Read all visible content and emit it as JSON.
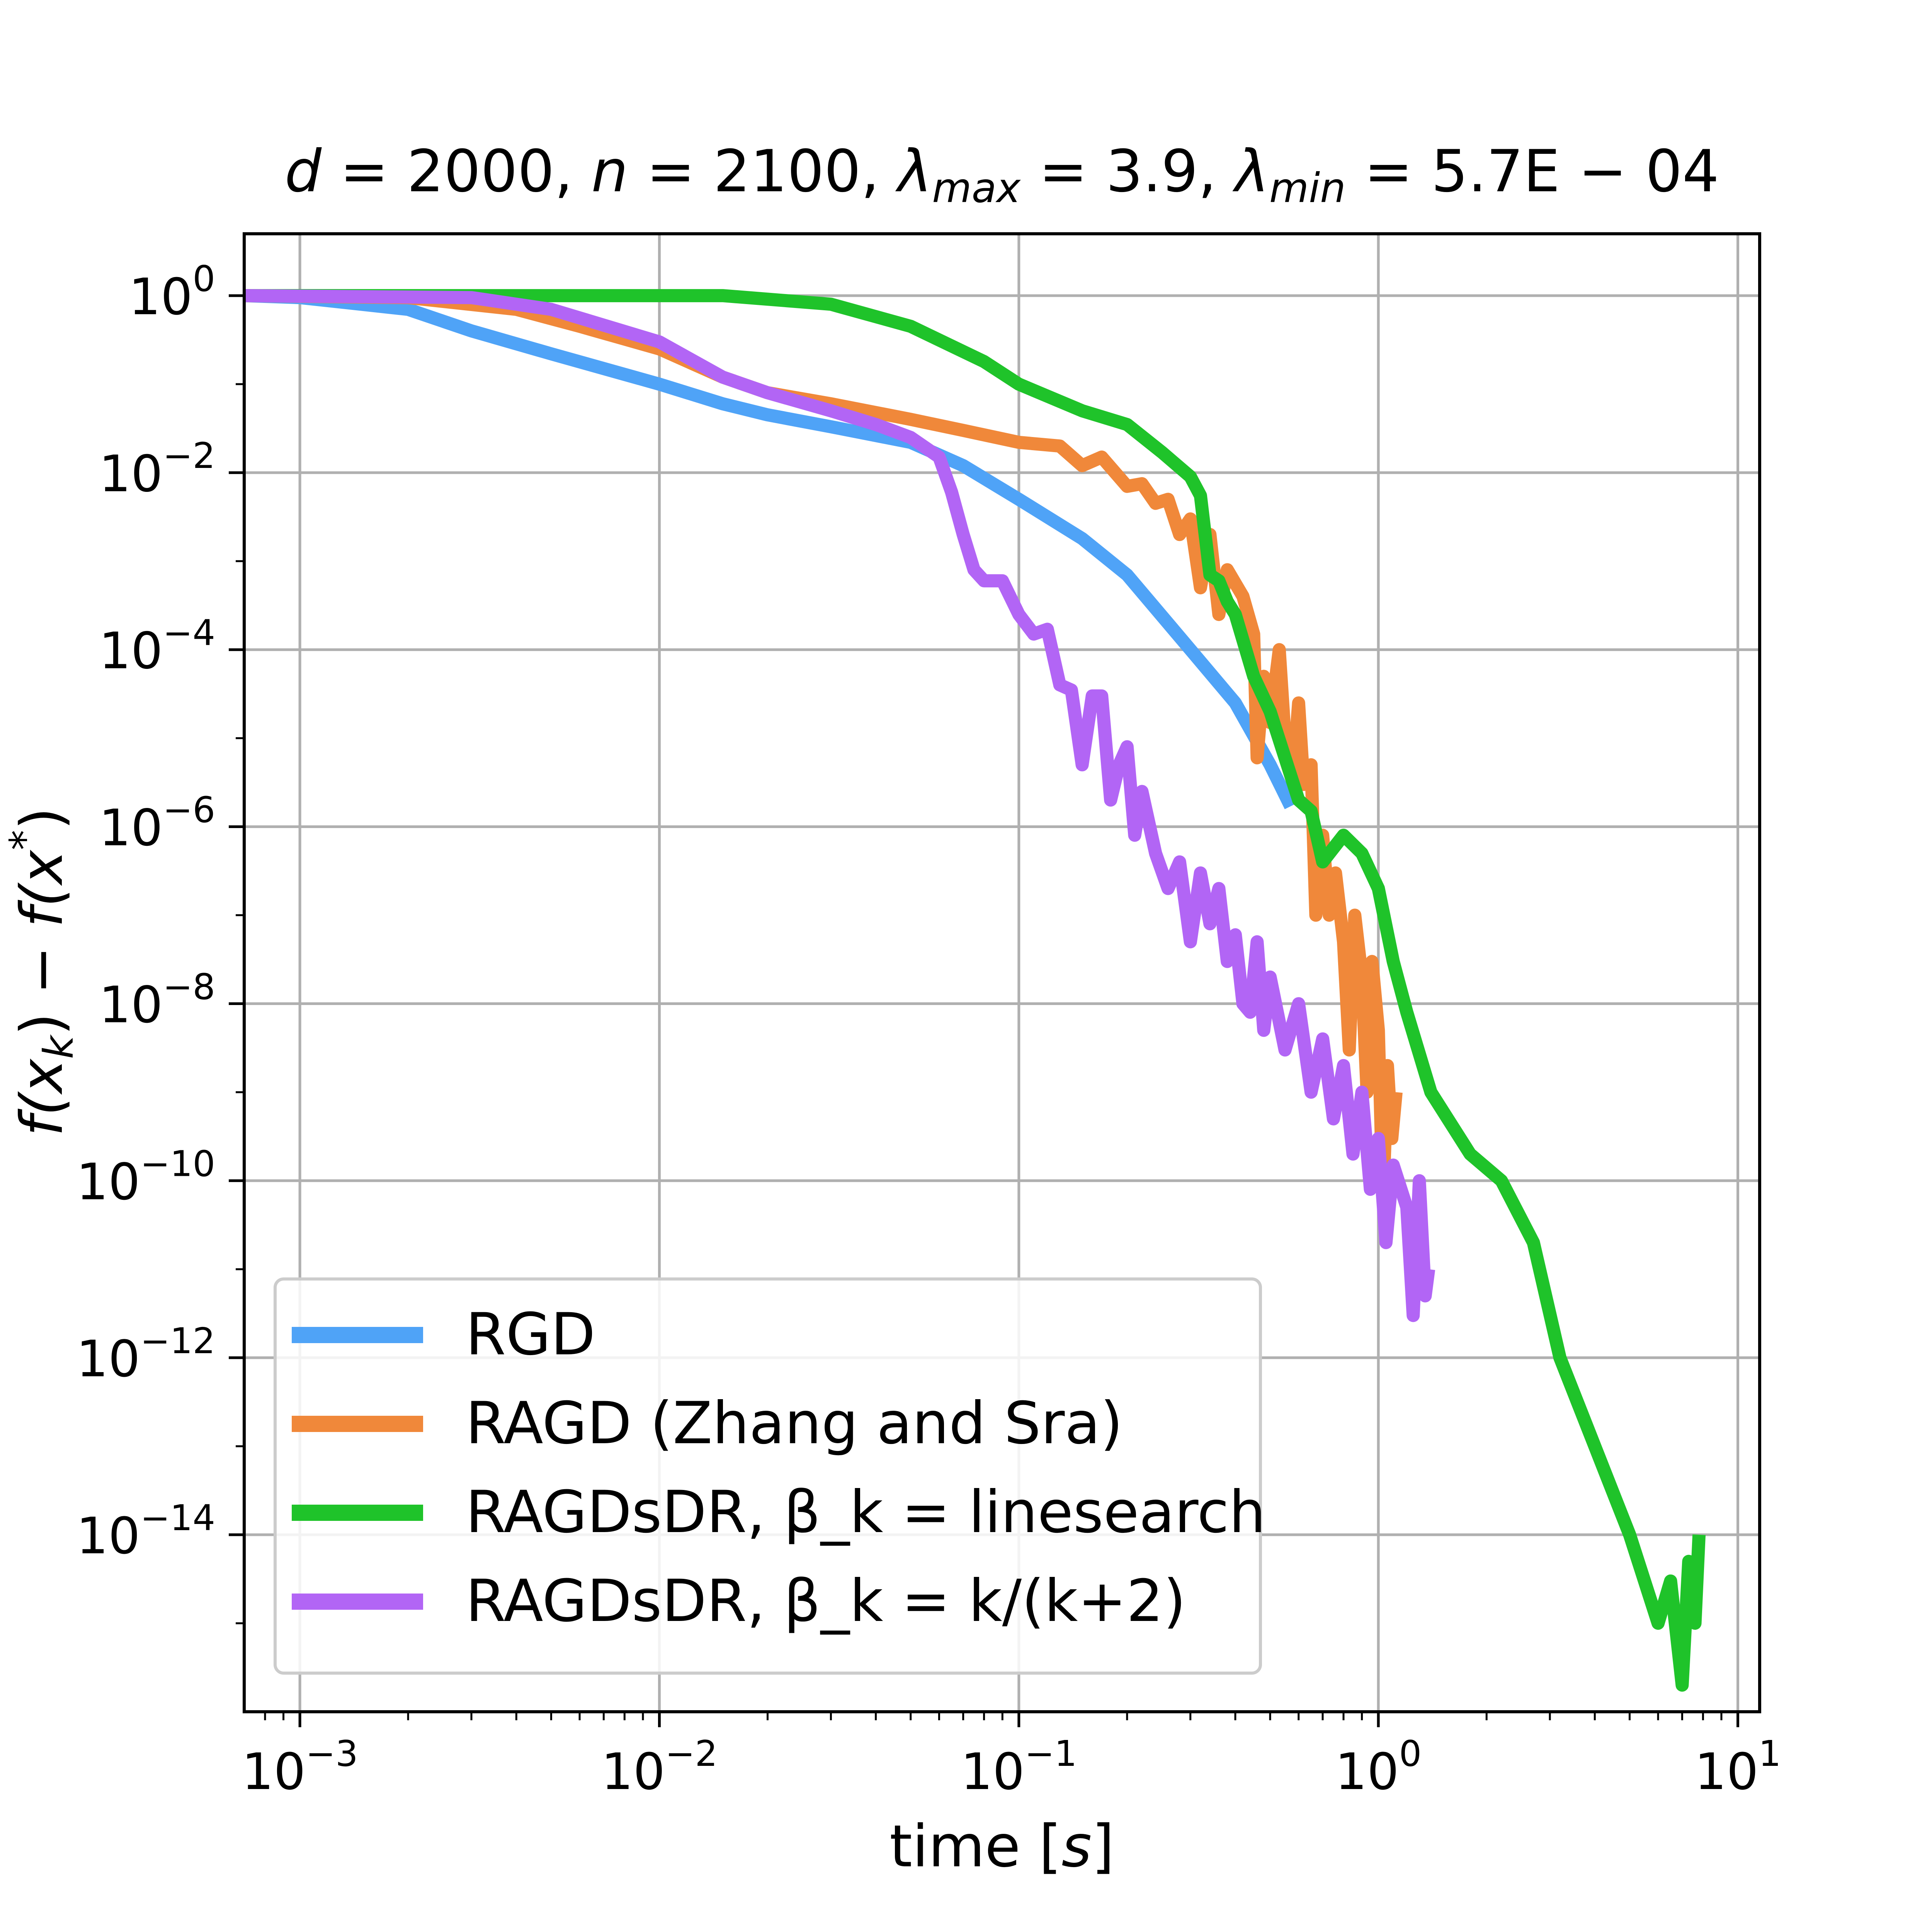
{
  "chart_data": {
    "type": "line",
    "title": {
      "d": "2000",
      "n": "2100",
      "lambda_max": "3.9",
      "lambda_min": "5.7E − 04"
    },
    "xlabel": {
      "prefix": "time [",
      "var": "s",
      "suffix": "]"
    },
    "ylabel": "f(x_k) − f(x*)",
    "x_scale": "log",
    "y_scale": "log",
    "xlim": [
      0.0007,
      11.5
    ],
    "ylim": [
      1e-16,
      5
    ],
    "grid": true,
    "legend_position": "lower-left",
    "x_ticks": [
      {
        "base": "10",
        "exp": "−3",
        "value": 0.001
      },
      {
        "base": "10",
        "exp": "−2",
        "value": 0.01
      },
      {
        "base": "10",
        "exp": "−1",
        "value": 0.1
      },
      {
        "base": "10",
        "exp": "0",
        "value": 1
      },
      {
        "base": "10",
        "exp": "1",
        "value": 10
      }
    ],
    "y_ticks": [
      {
        "base": "10",
        "exp": "0",
        "value": 1
      },
      {
        "base": "10",
        "exp": "−2",
        "value": 0.01
      },
      {
        "base": "10",
        "exp": "−4",
        "value": 0.0001
      },
      {
        "base": "10",
        "exp": "−6",
        "value": 1e-06
      },
      {
        "base": "10",
        "exp": "−8",
        "value": 1e-08
      },
      {
        "base": "10",
        "exp": "−10",
        "value": 1e-10
      },
      {
        "base": "10",
        "exp": "−12",
        "value": 1e-12
      },
      {
        "base": "10",
        "exp": "−14",
        "value": 1e-14
      }
    ],
    "series": [
      {
        "name": "RGD",
        "color": "#4fa3f7",
        "points": [
          [
            0.0007,
            1.0
          ],
          [
            0.001,
            0.95
          ],
          [
            0.002,
            0.7
          ],
          [
            0.003,
            0.4
          ],
          [
            0.005,
            0.22
          ],
          [
            0.01,
            0.1
          ],
          [
            0.015,
            0.06
          ],
          [
            0.02,
            0.045
          ],
          [
            0.03,
            0.033
          ],
          [
            0.05,
            0.022
          ],
          [
            0.07,
            0.012
          ],
          [
            0.1,
            0.005
          ],
          [
            0.15,
            0.0018
          ],
          [
            0.2,
            0.0007
          ],
          [
            0.3,
            0.0001
          ],
          [
            0.4,
            2.5e-05
          ],
          [
            0.5,
            5e-06
          ],
          [
            0.57,
            1.7e-06
          ]
        ]
      },
      {
        "name": "RAGD (Zhang and Sra)",
        "color": "#f0883a",
        "points": [
          [
            0.0007,
            1.0
          ],
          [
            0.002,
            0.95
          ],
          [
            0.004,
            0.7
          ],
          [
            0.006,
            0.45
          ],
          [
            0.01,
            0.25
          ],
          [
            0.015,
            0.12
          ],
          [
            0.02,
            0.08
          ],
          [
            0.03,
            0.06
          ],
          [
            0.05,
            0.04
          ],
          [
            0.07,
            0.03
          ],
          [
            0.1,
            0.022
          ],
          [
            0.13,
            0.02
          ],
          [
            0.15,
            0.012
          ],
          [
            0.17,
            0.015
          ],
          [
            0.2,
            0.007
          ],
          [
            0.22,
            0.0075
          ],
          [
            0.24,
            0.0045
          ],
          [
            0.26,
            0.005
          ],
          [
            0.28,
            0.002
          ],
          [
            0.3,
            0.003
          ],
          [
            0.32,
            0.0005
          ],
          [
            0.34,
            0.002
          ],
          [
            0.36,
            0.00025
          ],
          [
            0.38,
            0.0008
          ],
          [
            0.42,
            0.0004
          ],
          [
            0.45,
            0.00015
          ],
          [
            0.46,
            6e-06
          ],
          [
            0.48,
            5e-05
          ],
          [
            0.5,
            1.5e-05
          ],
          [
            0.53,
            0.0001
          ],
          [
            0.55,
            1e-05
          ],
          [
            0.58,
            4e-06
          ],
          [
            0.6,
            2.5e-05
          ],
          [
            0.62,
            3e-06
          ],
          [
            0.65,
            5e-06
          ],
          [
            0.67,
            1e-07
          ],
          [
            0.7,
            8e-07
          ],
          [
            0.73,
            1e-07
          ],
          [
            0.76,
            3e-07
          ],
          [
            0.8,
            5e-08
          ],
          [
            0.83,
            3e-09
          ],
          [
            0.86,
            1e-07
          ],
          [
            0.9,
            2e-08
          ],
          [
            0.93,
            1e-09
          ],
          [
            0.96,
            3e-08
          ],
          [
            1.0,
            5e-09
          ],
          [
            1.03,
            6e-11
          ],
          [
            1.06,
            2e-09
          ],
          [
            1.09,
            3e-10
          ],
          [
            1.12,
            1e-09
          ]
        ]
      },
      {
        "name": "RAGDsDR, β_k = linesearch",
        "color": "#1fc32a",
        "points": [
          [
            0.0007,
            1.0
          ],
          [
            0.015,
            1.0
          ],
          [
            0.03,
            0.8
          ],
          [
            0.05,
            0.45
          ],
          [
            0.08,
            0.18
          ],
          [
            0.1,
            0.1
          ],
          [
            0.15,
            0.05
          ],
          [
            0.2,
            0.035
          ],
          [
            0.25,
            0.017
          ],
          [
            0.3,
            0.009
          ],
          [
            0.32,
            0.0055
          ],
          [
            0.34,
            0.0007
          ],
          [
            0.36,
            0.0006
          ],
          [
            0.38,
            0.00035
          ],
          [
            0.4,
            0.00025
          ],
          [
            0.45,
            5e-05
          ],
          [
            0.5,
            2e-05
          ],
          [
            0.55,
            6e-06
          ],
          [
            0.6,
            2e-06
          ],
          [
            0.65,
            1.5e-06
          ],
          [
            0.7,
            4e-07
          ],
          [
            0.8,
            8e-07
          ],
          [
            0.9,
            5e-07
          ],
          [
            1.0,
            2e-07
          ],
          [
            1.1,
            3e-08
          ],
          [
            1.2,
            8e-09
          ],
          [
            1.4,
            1e-09
          ],
          [
            1.8,
            2e-10
          ],
          [
            2.2,
            1e-10
          ],
          [
            2.7,
            2e-11
          ],
          [
            3.2,
            1e-12
          ],
          [
            4.0,
            1e-13
          ],
          [
            5.0,
            1e-14
          ],
          [
            6.0,
            1e-15
          ],
          [
            6.5,
            3e-15
          ],
          [
            7.0,
            2e-16
          ],
          [
            7.3,
            5e-15
          ],
          [
            7.6,
            1e-15
          ],
          [
            7.8,
            1e-14
          ]
        ]
      },
      {
        "name": "RAGDsDR, β_k = k/(k+2)",
        "color": "#b265f5",
        "points": [
          [
            0.0007,
            1.0
          ],
          [
            0.003,
            0.95
          ],
          [
            0.005,
            0.7
          ],
          [
            0.01,
            0.3
          ],
          [
            0.015,
            0.12
          ],
          [
            0.02,
            0.08
          ],
          [
            0.03,
            0.05
          ],
          [
            0.04,
            0.035
          ],
          [
            0.05,
            0.025
          ],
          [
            0.06,
            0.015
          ],
          [
            0.065,
            0.006
          ],
          [
            0.07,
            0.002
          ],
          [
            0.075,
            0.0008
          ],
          [
            0.08,
            0.0006
          ],
          [
            0.09,
            0.0006
          ],
          [
            0.1,
            0.00025
          ],
          [
            0.11,
            0.00015
          ],
          [
            0.12,
            0.00017
          ],
          [
            0.13,
            4e-05
          ],
          [
            0.14,
            3.5e-05
          ],
          [
            0.15,
            5e-06
          ],
          [
            0.16,
            3e-05
          ],
          [
            0.17,
            3e-05
          ],
          [
            0.18,
            2e-06
          ],
          [
            0.19,
            5e-06
          ],
          [
            0.2,
            8e-06
          ],
          [
            0.21,
            8e-07
          ],
          [
            0.22,
            2.5e-06
          ],
          [
            0.24,
            5e-07
          ],
          [
            0.26,
            2e-07
          ],
          [
            0.28,
            4e-07
          ],
          [
            0.3,
            5e-08
          ],
          [
            0.32,
            3e-07
          ],
          [
            0.34,
            8e-08
          ],
          [
            0.36,
            2e-07
          ],
          [
            0.38,
            3e-08
          ],
          [
            0.4,
            6e-08
          ],
          [
            0.42,
            1e-08
          ],
          [
            0.44,
            8e-09
          ],
          [
            0.46,
            5e-08
          ],
          [
            0.48,
            5e-09
          ],
          [
            0.5,
            2e-08
          ],
          [
            0.55,
            3e-09
          ],
          [
            0.6,
            1e-08
          ],
          [
            0.65,
            1e-09
          ],
          [
            0.7,
            4e-09
          ],
          [
            0.75,
            5e-10
          ],
          [
            0.8,
            2e-09
          ],
          [
            0.85,
            2e-10
          ],
          [
            0.9,
            1e-09
          ],
          [
            0.95,
            8e-11
          ],
          [
            1.0,
            3e-10
          ],
          [
            1.05,
            2e-11
          ],
          [
            1.1,
            1.5e-10
          ],
          [
            1.2,
            5e-11
          ],
          [
            1.25,
            3e-12
          ],
          [
            1.3,
            1e-10
          ],
          [
            1.35,
            5e-12
          ],
          [
            1.38,
            1e-11
          ]
        ]
      }
    ]
  }
}
